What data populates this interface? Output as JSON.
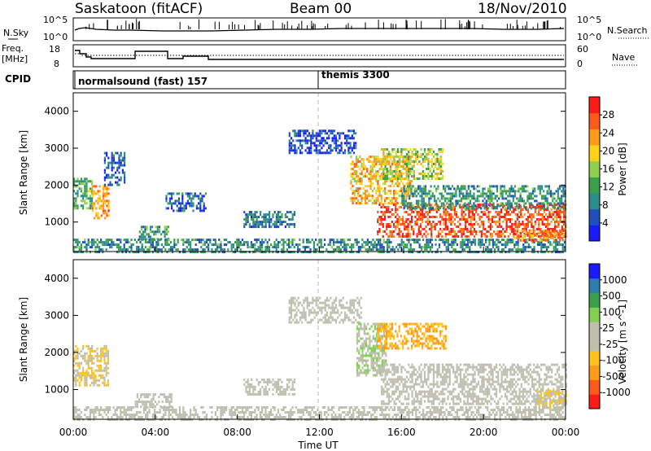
{
  "header": {
    "station": "Saskatoon (fitACF)",
    "beam": "Beam 00",
    "date": "18/Nov/2010"
  },
  "meta_panels": {
    "nsky_label": "N.Sky",
    "nsky_tick_top": "10^5",
    "nsky_tick_bottom": "10^0",
    "nsearch_label": "N.Search",
    "freq_label_line1": "Freq.",
    "freq_label_line2": "[MHz]",
    "freq_ticks": [
      "18",
      "8"
    ],
    "nave_ticks": [
      "60",
      "0"
    ],
    "nave_label": "Nave",
    "cpid_label": "CPID",
    "cpid_programs": [
      {
        "name": "normalsound (fast) 157",
        "start_hour": 0.0
      },
      {
        "name": "themis 3300",
        "start_hour": 12.0
      }
    ]
  },
  "colors": {
    "power_scale": [
      "#1a1aff",
      "#1f4fbf",
      "#2e8b8b",
      "#3aa14a",
      "#8fd14f",
      "#ffd21a",
      "#ff9a1a",
      "#ff5a1a",
      "#ff1a1a"
    ],
    "velocity_scale": [
      "#ff1a1a",
      "#ff5a1a",
      "#ff9a1a",
      "#ffc21a",
      "#bfbfb0",
      "#bfbfb0",
      "#7fd14f",
      "#3aa14a",
      "#2e7fb0",
      "#1a1aff"
    ]
  },
  "chart_data": [
    {
      "type": "heatmap",
      "title": "",
      "xlabel": "",
      "ylabel": "Slant Range [km]",
      "xlim": [
        0,
        24
      ],
      "ylim": [
        200,
        4500
      ],
      "yticks": [
        "1000",
        "2000",
        "3000",
        "4000"
      ],
      "colorbar": {
        "label": "Power [dB]",
        "ticks": [
          "28",
          "24",
          "20",
          "16",
          "12",
          "8",
          "4"
        ],
        "range": [
          0,
          30
        ]
      },
      "regions": [
        {
          "x": [
            0.0,
            0.9
          ],
          "y": [
            1400,
            2200
          ],
          "value": 12
        },
        {
          "x": [
            0.9,
            1.7
          ],
          "y": [
            1100,
            2000
          ],
          "value": 22
        },
        {
          "x": [
            1.5,
            2.5
          ],
          "y": [
            2000,
            2900
          ],
          "value": 6
        },
        {
          "x": [
            3.2,
            4.6
          ],
          "y": [
            550,
            900
          ],
          "value": 10
        },
        {
          "x": [
            4.5,
            6.5
          ],
          "y": [
            1300,
            1800
          ],
          "value": 6
        },
        {
          "x": [
            8.3,
            10.8
          ],
          "y": [
            900,
            1300
          ],
          "value": 8
        },
        {
          "x": [
            10.5,
            13.8
          ],
          "y": [
            2900,
            3500
          ],
          "value": 4
        },
        {
          "x": [
            0.0,
            24.0
          ],
          "y": [
            200,
            550
          ],
          "value": 9
        },
        {
          "x": [
            13.5,
            16.5
          ],
          "y": [
            1500,
            2800
          ],
          "value": 20
        },
        {
          "x": [
            15.0,
            18.0
          ],
          "y": [
            2200,
            3000
          ],
          "value": 16
        },
        {
          "x": [
            14.8,
            24.0
          ],
          "y": [
            600,
            1500
          ],
          "value": 26
        },
        {
          "x": [
            16.0,
            24.0
          ],
          "y": [
            1400,
            2000
          ],
          "value": 10
        },
        {
          "x": [
            21.5,
            24.0
          ],
          "y": [
            500,
            800
          ],
          "value": 22
        }
      ]
    },
    {
      "type": "heatmap",
      "title": "",
      "xlabel": "Time UT",
      "ylabel": "Slant Range [km]",
      "xlim": [
        0,
        24
      ],
      "ylim": [
        200,
        4500
      ],
      "xticks": [
        "00:00",
        "04:00",
        "08:00",
        "12:00",
        "16:00",
        "20:00",
        "00:00"
      ],
      "yticks": [
        "1000",
        "2000",
        "3000",
        "4000"
      ],
      "colorbar": {
        "label": "Velocity [m s^-1]",
        "ticks": [
          "1000",
          "500",
          "100",
          "25",
          "-25",
          "-100",
          "-500",
          "-1000"
        ],
        "range": [
          -1000,
          1000
        ]
      },
      "regions": [
        {
          "x": [
            0.0,
            1.7
          ],
          "y": [
            1100,
            2200
          ],
          "value": -200
        },
        {
          "x": [
            3.0,
            4.8
          ],
          "y": [
            550,
            900
          ],
          "value": -100
        },
        {
          "x": [
            8.3,
            10.8
          ],
          "y": [
            900,
            1300
          ],
          "value": 0
        },
        {
          "x": [
            10.5,
            14.0
          ],
          "y": [
            2800,
            3500
          ],
          "value": 0
        },
        {
          "x": [
            13.8,
            15.2
          ],
          "y": [
            1400,
            2800
          ],
          "value": 150
        },
        {
          "x": [
            14.8,
            18.2
          ],
          "y": [
            2100,
            2800
          ],
          "value": -400
        },
        {
          "x": [
            15.0,
            24.0
          ],
          "y": [
            600,
            1700
          ],
          "value": 0
        },
        {
          "x": [
            0.0,
            24.0
          ],
          "y": [
            200,
            550
          ],
          "value": -50
        },
        {
          "x": [
            22.5,
            24.0
          ],
          "y": [
            500,
            1000
          ],
          "value": -150
        }
      ]
    }
  ]
}
